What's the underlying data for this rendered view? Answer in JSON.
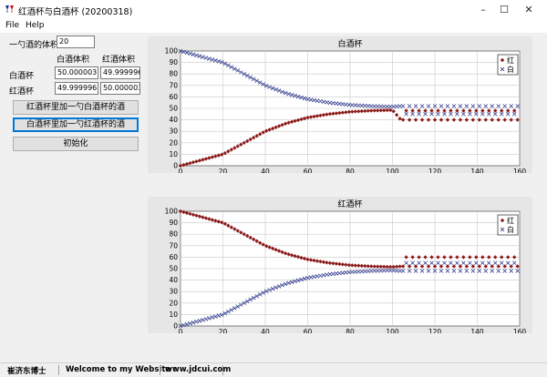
{
  "window": {
    "title": "红酒杯与白酒杯 (20200318)",
    "minimize_glyph": "–",
    "maximize_glyph": "☐",
    "close_glyph": "✕"
  },
  "menu": [
    "File",
    "Help"
  ],
  "form": {
    "spoon_label": "一勺酒的体积",
    "spoon_value": "20",
    "col_white_header": "白酒体积",
    "col_red_header": "红酒体积",
    "row_white_label": "白酒杯",
    "row_red_label": "红酒杯",
    "white_cup_white": "50.000003",
    "white_cup_red": "49.999996",
    "red_cup_white": "49.999996",
    "red_cup_red": "50.000003"
  },
  "buttons": {
    "red_to_white": "红酒杯里加一勺白酒杯的酒",
    "white_to_red": "白酒杯里加一勺红酒杯的酒",
    "init": "初始化"
  },
  "colors": {
    "red_series": "#8b1a1a",
    "white_series": "#1f2a80",
    "plot_bg": "#ffffff",
    "panel_bg": "#e6e6e6"
  },
  "chart_data": [
    {
      "type": "scatter",
      "title": "白酒杯",
      "xlim": [
        0,
        160
      ],
      "ylim": [
        0,
        100
      ],
      "xticks": [
        0,
        20,
        40,
        60,
        80,
        100,
        120,
        140,
        160
      ],
      "yticks": [
        0,
        10,
        20,
        30,
        40,
        50,
        60,
        70,
        80,
        90,
        100
      ],
      "grid": true,
      "legend": "top-right",
      "series": [
        {
          "name": "红",
          "marker": "diamond",
          "x": [
            0,
            10,
            20,
            30,
            40,
            50,
            60,
            70,
            80,
            90,
            100,
            104,
            160
          ],
          "y": [
            0,
            5,
            10,
            20,
            30,
            37,
            42,
            45,
            47,
            48,
            48.5,
            40,
            40
          ],
          "alt_y_after_104": 48
        },
        {
          "name": "白",
          "marker": "cross",
          "x": [
            0,
            10,
            20,
            30,
            40,
            50,
            60,
            70,
            80,
            90,
            100,
            104,
            160
          ],
          "y": [
            100,
            95,
            90,
            80,
            70,
            63,
            58,
            55,
            53,
            52,
            51.5,
            52,
            52
          ],
          "alt_y_after_104": 45
        }
      ]
    },
    {
      "type": "scatter",
      "title": "红酒杯",
      "xlim": [
        0,
        160
      ],
      "ylim": [
        0,
        100
      ],
      "xticks": [
        0,
        20,
        40,
        60,
        80,
        100,
        120,
        140,
        160
      ],
      "yticks": [
        0,
        10,
        20,
        30,
        40,
        50,
        60,
        70,
        80,
        90,
        100
      ],
      "grid": true,
      "legend": "top-right",
      "series": [
        {
          "name": "红",
          "marker": "diamond",
          "x": [
            0,
            10,
            20,
            30,
            40,
            50,
            60,
            70,
            80,
            90,
            100,
            104,
            160
          ],
          "y": [
            100,
            95,
            90,
            80,
            70,
            63,
            58,
            55,
            53,
            52,
            51.5,
            52,
            52
          ],
          "alt_y_after_104": 60
        },
        {
          "name": "白",
          "marker": "cross",
          "x": [
            0,
            10,
            20,
            30,
            40,
            50,
            60,
            70,
            80,
            90,
            100,
            104,
            160
          ],
          "y": [
            0,
            5,
            10,
            20,
            30,
            37,
            42,
            45,
            47,
            48,
            48.5,
            48,
            48
          ],
          "alt_y_after_104": 55
        }
      ]
    }
  ],
  "status": {
    "author": "崔济东博士",
    "welcome": "Welcome to my Website :",
    "url": "www.jdcui.com"
  }
}
